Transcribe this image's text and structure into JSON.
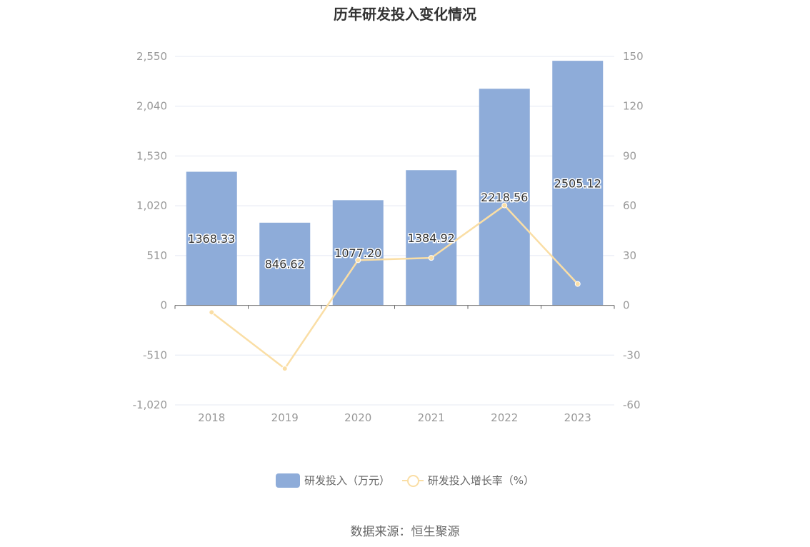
{
  "chart_data": {
    "type": "bar",
    "title": "历年研发投入变化情况",
    "categories": [
      "2018",
      "2019",
      "2020",
      "2021",
      "2022",
      "2023"
    ],
    "series": [
      {
        "name": "研发投入（万元）",
        "type": "bar",
        "axis": "left",
        "values": [
          1368.33,
          846.62,
          1077.2,
          1384.92,
          2218.56,
          2505.12
        ],
        "labels": [
          "1368.33",
          "846.62",
          "1077.20",
          "1384.92",
          "2218.56",
          "2505.12"
        ]
      },
      {
        "name": "研发投入增长率（%）",
        "type": "line",
        "axis": "right",
        "values": [
          -4.2,
          -38.1,
          27.2,
          28.6,
          60.2,
          12.9
        ]
      }
    ],
    "y_left": {
      "ylim": [
        -1020,
        2550
      ],
      "ticks": [
        "2,550",
        "2,040",
        "1,530",
        "1,020",
        "510",
        "0",
        "-510",
        "-1,020"
      ]
    },
    "y_right": {
      "ylim": [
        -60,
        150
      ],
      "ticks": [
        "150",
        "120",
        "90",
        "60",
        "30",
        "0",
        "-30",
        "-60"
      ]
    },
    "grid": true,
    "legend_position": "bottom",
    "colors": {
      "bar": "#8eacd9",
      "line": "#fadea5",
      "grid": "#e4e8f3",
      "axis": "#666666"
    }
  },
  "source": "数据来源：恒生聚源"
}
